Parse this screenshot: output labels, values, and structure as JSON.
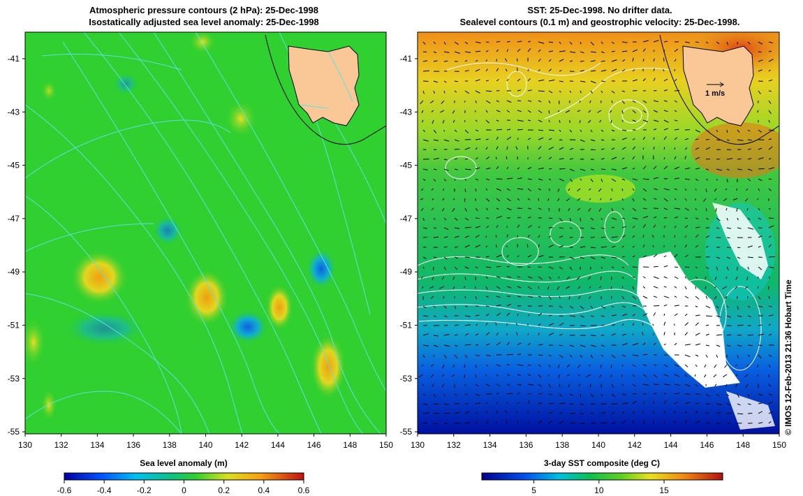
{
  "left_panel": {
    "title_line1": "Atmospheric pressure contours (2 hPa): 25-Dec-1998",
    "title_line2": "Isostatically adjusted sea level anomaly: 25-Dec-1998",
    "lat_ticks": [
      "-41",
      "-43",
      "-45",
      "-47",
      "-49",
      "-51",
      "-53",
      "-55"
    ],
    "lon_ticks": [
      "130",
      "132",
      "134",
      "136",
      "138",
      "140",
      "142",
      "144",
      "146",
      "148",
      "150"
    ],
    "colorbar_label": "Sea level anomaly (m)",
    "colorbar_ticks": [
      "-0.6",
      "-0.4",
      "-0.2",
      "0",
      "0.2",
      "0.4",
      "0.6"
    ]
  },
  "right_panel": {
    "title_line1": "SST: 25-Dec-1998. No drifter data.",
    "title_line2": "Sealevel contours (0.1 m) and geostrophic velocity: 25-Dec-1998.",
    "lat_ticks": [
      "-41",
      "-43",
      "-45",
      "-47",
      "-49",
      "-51",
      "-53",
      "-55"
    ],
    "lon_ticks": [
      "130",
      "132",
      "134",
      "136",
      "138",
      "140",
      "142",
      "144",
      "146",
      "148",
      "150"
    ],
    "velocity_scale_label": "1 m/s",
    "colorbar_label": "3-day SST composite (deg C)",
    "colorbar_ticks": [
      "5",
      "10",
      "15"
    ]
  },
  "credit": "© IMOS 12-Feb-2013 21:36 Hobart Time",
  "colors": {
    "land": "#f9c896",
    "sla_background": "#2fd02f",
    "pressure_contour": "#5fe0e0",
    "missing_data": "#ffffff"
  }
}
